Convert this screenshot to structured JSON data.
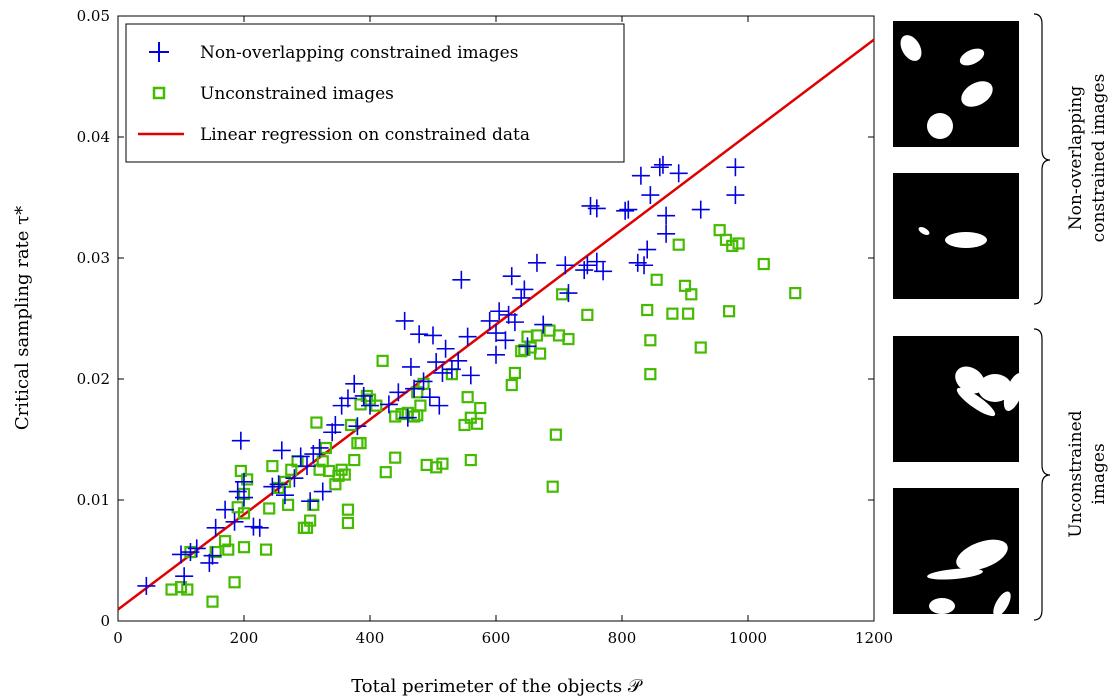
{
  "chart_data": {
    "type": "scatter",
    "xlabel": "Total perimeter of the objects 𝒫",
    "ylabel": "Critical sampling rate τ*",
    "xlim": [
      0,
      1200
    ],
    "ylim": [
      0,
      0.05
    ],
    "xticks": [
      0,
      200,
      400,
      600,
      800,
      1000,
      1200
    ],
    "yticks": [
      0,
      0.01,
      0.02,
      0.03,
      0.04,
      0.05
    ],
    "xtick_labels": [
      "0",
      "200",
      "400",
      "600",
      "800",
      "1000",
      "1200"
    ],
    "ytick_labels": [
      "0",
      "0.01",
      "0.02",
      "0.03",
      "0.04",
      "0.05"
    ],
    "grid": false,
    "legend_position": "top-left",
    "series": [
      {
        "name": "Non-overlapping constrained images",
        "marker": "plus",
        "color": "#0000e0",
        "points": [
          [
            45,
            0.0029
          ],
          [
            105,
            0.0037
          ],
          [
            100,
            0.0055
          ],
          [
            115,
            0.0057
          ],
          [
            125,
            0.006
          ],
          [
            145,
            0.0048
          ],
          [
            150,
            0.0054
          ],
          [
            155,
            0.0077
          ],
          [
            170,
            0.0092
          ],
          [
            190,
            0.0107
          ],
          [
            185,
            0.0082
          ],
          [
            200,
            0.0102
          ],
          [
            195,
            0.0149
          ],
          [
            200,
            0.0115
          ],
          [
            215,
            0.0078
          ],
          [
            225,
            0.0077
          ],
          [
            245,
            0.0111
          ],
          [
            255,
            0.0113
          ],
          [
            260,
            0.0141
          ],
          [
            265,
            0.0104
          ],
          [
            280,
            0.0118
          ],
          [
            290,
            0.0136
          ],
          [
            300,
            0.0128
          ],
          [
            305,
            0.0099
          ],
          [
            310,
            0.0138
          ],
          [
            320,
            0.0143
          ],
          [
            325,
            0.0107
          ],
          [
            340,
            0.0156
          ],
          [
            345,
            0.0162
          ],
          [
            355,
            0.0178
          ],
          [
            365,
            0.0184
          ],
          [
            375,
            0.0196
          ],
          [
            380,
            0.0161
          ],
          [
            390,
            0.0186
          ],
          [
            400,
            0.0178
          ],
          [
            430,
            0.0179
          ],
          [
            445,
            0.0189
          ],
          [
            455,
            0.0248
          ],
          [
            460,
            0.0168
          ],
          [
            465,
            0.021
          ],
          [
            470,
            0.0192
          ],
          [
            478,
            0.0237
          ],
          [
            485,
            0.0198
          ],
          [
            495,
            0.0185
          ],
          [
            500,
            0.0236
          ],
          [
            505,
            0.0214
          ],
          [
            510,
            0.0178
          ],
          [
            515,
            0.0205
          ],
          [
            520,
            0.0225
          ],
          [
            530,
            0.0208
          ],
          [
            540,
            0.0215
          ],
          [
            545,
            0.0282
          ],
          [
            555,
            0.0235
          ],
          [
            560,
            0.0203
          ],
          [
            590,
            0.0248
          ],
          [
            600,
            0.022
          ],
          [
            600,
            0.0238
          ],
          [
            605,
            0.0256
          ],
          [
            615,
            0.0232
          ],
          [
            620,
            0.0253
          ],
          [
            625,
            0.0285
          ],
          [
            630,
            0.0247
          ],
          [
            640,
            0.0267
          ],
          [
            645,
            0.0274
          ],
          [
            650,
            0.0227
          ],
          [
            665,
            0.0296
          ],
          [
            675,
            0.0245
          ],
          [
            710,
            0.0294
          ],
          [
            715,
            0.0271
          ],
          [
            740,
            0.029
          ],
          [
            745,
            0.0294
          ],
          [
            750,
            0.0343
          ],
          [
            760,
            0.0341
          ],
          [
            760,
            0.0297
          ],
          [
            770,
            0.0289
          ],
          [
            805,
            0.0339
          ],
          [
            810,
            0.034
          ],
          [
            825,
            0.0296
          ],
          [
            830,
            0.0368
          ],
          [
            835,
            0.0294
          ],
          [
            840,
            0.0307
          ],
          [
            845,
            0.0352
          ],
          [
            860,
            0.0375
          ],
          [
            865,
            0.0377
          ],
          [
            870,
            0.0335
          ],
          [
            870,
            0.032
          ],
          [
            890,
            0.037
          ],
          [
            925,
            0.034
          ],
          [
            980,
            0.0375
          ],
          [
            980,
            0.0352
          ]
        ]
      },
      {
        "name": "Unconstrained images",
        "marker": "square",
        "color": "#44bb00",
        "points": [
          [
            85,
            0.0026
          ],
          [
            100,
            0.0028
          ],
          [
            110,
            0.0026
          ],
          [
            115,
            0.0057
          ],
          [
            150,
            0.0016
          ],
          [
            155,
            0.0057
          ],
          [
            170,
            0.0066
          ],
          [
            175,
            0.0059
          ],
          [
            185,
            0.0032
          ],
          [
            190,
            0.0094
          ],
          [
            195,
            0.0124
          ],
          [
            200,
            0.0089
          ],
          [
            200,
            0.0105
          ],
          [
            205,
            0.0117
          ],
          [
            200,
            0.0061
          ],
          [
            235,
            0.0059
          ],
          [
            240,
            0.0093
          ],
          [
            245,
            0.0128
          ],
          [
            255,
            0.011
          ],
          [
            265,
            0.0115
          ],
          [
            270,
            0.0096
          ],
          [
            275,
            0.0125
          ],
          [
            285,
            0.0132
          ],
          [
            295,
            0.0077
          ],
          [
            300,
            0.0077
          ],
          [
            305,
            0.0083
          ],
          [
            310,
            0.0096
          ],
          [
            315,
            0.0164
          ],
          [
            320,
            0.0125
          ],
          [
            325,
            0.0132
          ],
          [
            330,
            0.0143
          ],
          [
            335,
            0.0124
          ],
          [
            345,
            0.0113
          ],
          [
            350,
            0.012
          ],
          [
            355,
            0.0125
          ],
          [
            360,
            0.0121
          ],
          [
            365,
            0.0081
          ],
          [
            365,
            0.0092
          ],
          [
            370,
            0.0162
          ],
          [
            375,
            0.0133
          ],
          [
            380,
            0.0147
          ],
          [
            385,
            0.0147
          ],
          [
            385,
            0.0179
          ],
          [
            395,
            0.0186
          ],
          [
            400,
            0.0183
          ],
          [
            410,
            0.0178
          ],
          [
            420,
            0.0215
          ],
          [
            425,
            0.0123
          ],
          [
            440,
            0.0169
          ],
          [
            440,
            0.0135
          ],
          [
            450,
            0.0171
          ],
          [
            460,
            0.0172
          ],
          [
            470,
            0.0169
          ],
          [
            475,
            0.017
          ],
          [
            475,
            0.0189
          ],
          [
            480,
            0.0178
          ],
          [
            485,
            0.0196
          ],
          [
            490,
            0.0129
          ],
          [
            505,
            0.0127
          ],
          [
            515,
            0.013
          ],
          [
            530,
            0.0204
          ],
          [
            550,
            0.0162
          ],
          [
            555,
            0.0185
          ],
          [
            560,
            0.0168
          ],
          [
            560,
            0.0133
          ],
          [
            570,
            0.0163
          ],
          [
            575,
            0.0176
          ],
          [
            625,
            0.0195
          ],
          [
            630,
            0.0205
          ],
          [
            640,
            0.0223
          ],
          [
            645,
            0.0224
          ],
          [
            650,
            0.0235
          ],
          [
            655,
            0.0226
          ],
          [
            665,
            0.0236
          ],
          [
            670,
            0.0221
          ],
          [
            685,
            0.024
          ],
          [
            690,
            0.0111
          ],
          [
            695,
            0.0154
          ],
          [
            700,
            0.0236
          ],
          [
            705,
            0.027
          ],
          [
            715,
            0.0233
          ],
          [
            745,
            0.0253
          ],
          [
            840,
            0.0257
          ],
          [
            845,
            0.0232
          ],
          [
            845,
            0.0204
          ],
          [
            855,
            0.0282
          ],
          [
            880,
            0.0254
          ],
          [
            890,
            0.0311
          ],
          [
            900,
            0.0277
          ],
          [
            905,
            0.0254
          ],
          [
            910,
            0.027
          ],
          [
            925,
            0.0226
          ],
          [
            955,
            0.0323
          ],
          [
            965,
            0.0315
          ],
          [
            970,
            0.0256
          ],
          [
            975,
            0.031
          ],
          [
            985,
            0.0312
          ],
          [
            1025,
            0.0295
          ],
          [
            1075,
            0.0271
          ]
        ]
      },
      {
        "name": "Linear regression on constrained data",
        "type": "line",
        "color": "#e00000",
        "points": [
          [
            0,
            0.00095
          ],
          [
            1200,
            0.04805
          ]
        ]
      }
    ]
  },
  "side_panels": {
    "group1_label": [
      "Non-overlapping",
      "constrained images"
    ],
    "group2_label": [
      "Unconstrained",
      "images"
    ]
  }
}
